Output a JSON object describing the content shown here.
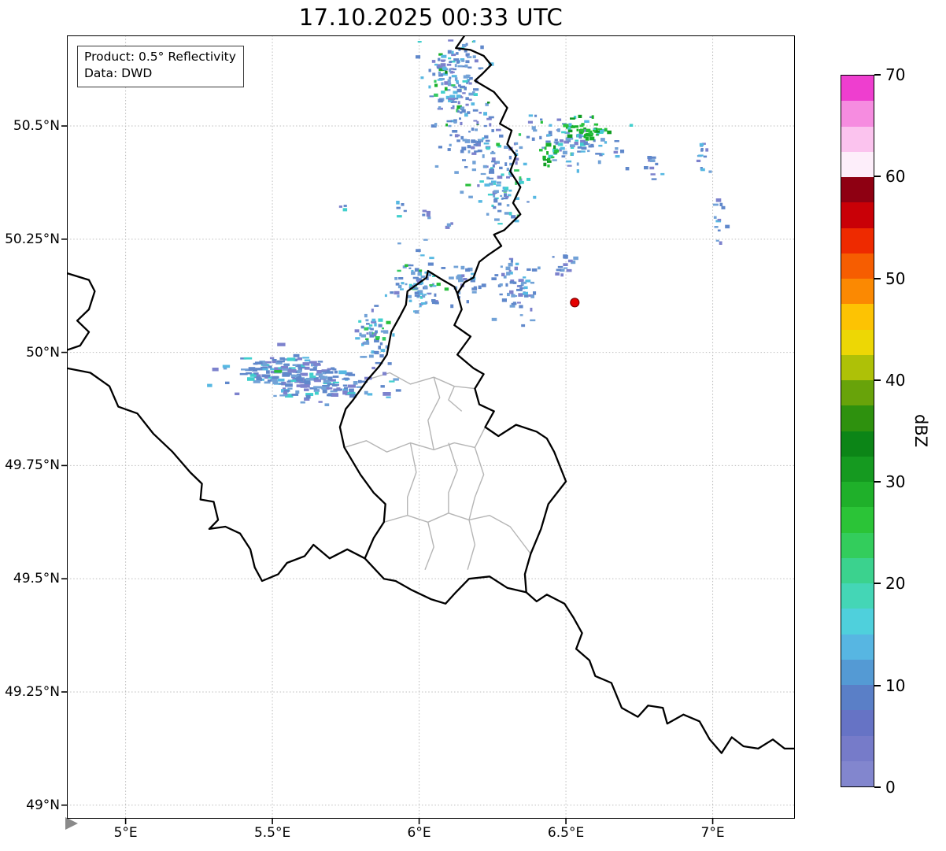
{
  "title": "17.10.2025 00:33 UTC",
  "annotation": {
    "line1": "Product: 0.5° Reflectivity",
    "line2": "Data: DWD"
  },
  "axes": {
    "x_ticks": [
      {
        "value": 5.0,
        "label": "5°E"
      },
      {
        "value": 5.5,
        "label": "5.5°E"
      },
      {
        "value": 6.0,
        "label": "6°E"
      },
      {
        "value": 6.5,
        "label": "6.5°E"
      },
      {
        "value": 7.0,
        "label": "7°E"
      }
    ],
    "y_ticks": [
      {
        "value": 50.5,
        "label": "50.5°N"
      },
      {
        "value": 50.25,
        "label": "50.25°N"
      },
      {
        "value": 50.0,
        "label": "50°N"
      },
      {
        "value": 49.75,
        "label": "49.75°N"
      },
      {
        "value": 49.5,
        "label": "49.5°N"
      },
      {
        "value": 49.25,
        "label": "49.25°N"
      },
      {
        "value": 49.0,
        "label": "49°N"
      }
    ]
  },
  "map": {
    "extent": {
      "lon_min": 4.8,
      "lon_max": 7.28,
      "lat_min": 48.97,
      "lat_max": 50.7
    },
    "grid_color": "#bdbdbd",
    "country_border_color": "#000000",
    "district_border_color": "#b5b5b5",
    "country_borders": [
      [
        [
          6.155,
          50.7
        ],
        [
          6.125,
          50.672
        ],
        [
          6.175,
          50.668
        ],
        [
          6.22,
          50.655
        ],
        [
          6.245,
          50.635
        ],
        [
          6.215,
          50.615
        ],
        [
          6.19,
          50.6
        ],
        [
          6.255,
          50.575
        ],
        [
          6.3,
          50.54
        ],
        [
          6.275,
          50.505
        ],
        [
          6.315,
          50.49
        ],
        [
          6.3,
          50.46
        ],
        [
          6.33,
          50.435
        ],
        [
          6.31,
          50.4
        ],
        [
          6.345,
          50.365
        ],
        [
          6.32,
          50.33
        ],
        [
          6.345,
          50.305
        ],
        [
          6.29,
          50.27
        ],
        [
          6.255,
          50.26
        ],
        [
          6.28,
          50.235
        ],
        [
          6.235,
          50.215
        ],
        [
          6.205,
          50.2
        ],
        [
          6.185,
          50.165
        ],
        [
          6.155,
          50.155
        ],
        [
          6.13,
          50.13
        ]
      ],
      [
        [
          6.13,
          50.13
        ],
        [
          6.145,
          50.095
        ],
        [
          6.12,
          50.06
        ],
        [
          6.175,
          50.035
        ],
        [
          6.13,
          49.995
        ],
        [
          6.185,
          49.965
        ],
        [
          6.22,
          49.952
        ],
        [
          6.19,
          49.92
        ],
        [
          6.205,
          49.885
        ],
        [
          6.255,
          49.87
        ],
        [
          6.225,
          49.835
        ],
        [
          6.27,
          49.815
        ],
        [
          6.33,
          49.84
        ],
        [
          6.4,
          49.825
        ],
        [
          6.435,
          49.81
        ],
        [
          6.46,
          49.78
        ],
        [
          6.5,
          49.715
        ],
        [
          6.44,
          49.665
        ],
        [
          6.415,
          49.61
        ],
        [
          6.38,
          49.555
        ],
        [
          6.36,
          49.51
        ],
        [
          6.365,
          49.47
        ],
        [
          6.3,
          49.48
        ],
        [
          6.24,
          49.505
        ],
        [
          6.17,
          49.5
        ],
        [
          6.125,
          49.47
        ],
        [
          6.09,
          49.445
        ],
        [
          6.04,
          49.455
        ],
        [
          5.975,
          49.475
        ],
        [
          5.92,
          49.495
        ],
        [
          5.88,
          49.5
        ],
        [
          5.815,
          49.545
        ],
        [
          5.845,
          49.59
        ],
        [
          5.88,
          49.625
        ],
        [
          5.885,
          49.665
        ],
        [
          5.845,
          49.69
        ],
        [
          5.8,
          49.73
        ],
        [
          5.745,
          49.79
        ],
        [
          5.73,
          49.835
        ],
        [
          5.75,
          49.875
        ],
        [
          5.775,
          49.895
        ],
        [
          5.825,
          49.94
        ],
        [
          5.865,
          49.97
        ],
        [
          5.89,
          49.995
        ],
        [
          5.905,
          50.045
        ],
        [
          5.935,
          50.08
        ],
        [
          5.955,
          50.105
        ],
        [
          5.96,
          50.135
        ],
        [
          6.025,
          50.165
        ],
        [
          6.03,
          50.18
        ],
        [
          6.08,
          50.16
        ],
        [
          6.12,
          50.145
        ],
        [
          6.13,
          50.13
        ]
      ],
      [
        [
          4.8,
          50.175
        ],
        [
          4.875,
          50.16
        ],
        [
          4.895,
          50.135
        ],
        [
          4.875,
          50.095
        ],
        [
          4.835,
          50.07
        ],
        [
          4.875,
          50.045
        ],
        [
          4.845,
          50.015
        ],
        [
          4.8,
          50.005
        ]
      ],
      [
        [
          4.8,
          49.965
        ],
        [
          4.88,
          49.955
        ],
        [
          4.945,
          49.925
        ],
        [
          4.975,
          49.88
        ],
        [
          5.04,
          49.865
        ],
        [
          5.095,
          49.82
        ],
        [
          5.16,
          49.78
        ],
        [
          5.22,
          49.735
        ],
        [
          5.26,
          49.71
        ],
        [
          5.255,
          49.675
        ],
        [
          5.3,
          49.67
        ],
        [
          5.315,
          49.63
        ],
        [
          5.285,
          49.61
        ],
        [
          5.34,
          49.615
        ],
        [
          5.39,
          49.6
        ],
        [
          5.425,
          49.565
        ],
        [
          5.44,
          49.525
        ],
        [
          5.465,
          49.495
        ],
        [
          5.52,
          49.51
        ],
        [
          5.55,
          49.535
        ],
        [
          5.61,
          49.55
        ],
        [
          5.64,
          49.575
        ],
        [
          5.695,
          49.545
        ],
        [
          5.755,
          49.565
        ],
        [
          5.815,
          49.545
        ]
      ],
      [
        [
          6.365,
          49.47
        ],
        [
          6.4,
          49.45
        ],
        [
          6.435,
          49.465
        ],
        [
          6.495,
          49.445
        ],
        [
          6.525,
          49.415
        ],
        [
          6.555,
          49.38
        ],
        [
          6.535,
          49.345
        ],
        [
          6.58,
          49.32
        ],
        [
          6.6,
          49.285
        ],
        [
          6.655,
          49.27
        ],
        [
          6.69,
          49.215
        ],
        [
          6.745,
          49.195
        ],
        [
          6.78,
          49.22
        ],
        [
          6.83,
          49.215
        ],
        [
          6.845,
          49.18
        ],
        [
          6.9,
          49.2
        ],
        [
          6.955,
          49.185
        ],
        [
          6.99,
          49.145
        ],
        [
          7.03,
          49.115
        ],
        [
          7.065,
          49.15
        ],
        [
          7.105,
          49.13
        ],
        [
          7.155,
          49.125
        ],
        [
          7.205,
          49.145
        ],
        [
          7.245,
          49.125
        ],
        [
          7.28,
          49.125
        ]
      ]
    ],
    "district_borders": [
      [
        [
          5.825,
          49.94
        ],
        [
          5.9,
          49.955
        ],
        [
          5.97,
          49.93
        ],
        [
          6.05,
          49.945
        ],
        [
          6.12,
          49.925
        ],
        [
          6.19,
          49.92
        ]
      ],
      [
        [
          5.745,
          49.79
        ],
        [
          5.82,
          49.805
        ],
        [
          5.89,
          49.78
        ],
        [
          5.97,
          49.8
        ],
        [
          6.05,
          49.785
        ],
        [
          6.12,
          49.8
        ],
        [
          6.19,
          49.79
        ],
        [
          6.225,
          49.835
        ]
      ],
      [
        [
          5.88,
          49.625
        ],
        [
          5.96,
          49.64
        ],
        [
          6.03,
          49.625
        ],
        [
          6.1,
          49.645
        ],
        [
          6.17,
          49.63
        ],
        [
          6.24,
          49.64
        ],
        [
          6.31,
          49.615
        ],
        [
          6.38,
          49.555
        ]
      ],
      [
        [
          5.97,
          49.8
        ],
        [
          5.99,
          49.735
        ],
        [
          5.96,
          49.68
        ],
        [
          5.96,
          49.64
        ]
      ],
      [
        [
          6.1,
          49.8
        ],
        [
          6.13,
          49.74
        ],
        [
          6.1,
          49.69
        ],
        [
          6.1,
          49.645
        ]
      ],
      [
        [
          6.19,
          49.79
        ],
        [
          6.22,
          49.73
        ],
        [
          6.19,
          49.68
        ],
        [
          6.17,
          49.63
        ]
      ],
      [
        [
          6.05,
          49.945
        ],
        [
          6.07,
          49.9
        ],
        [
          6.03,
          49.85
        ],
        [
          6.05,
          49.785
        ]
      ],
      [
        [
          6.03,
          49.625
        ],
        [
          6.05,
          49.57
        ],
        [
          6.02,
          49.52
        ]
      ],
      [
        [
          6.17,
          49.63
        ],
        [
          6.19,
          49.575
        ],
        [
          6.165,
          49.52
        ]
      ],
      [
        [
          6.12,
          49.925
        ],
        [
          6.1,
          49.895
        ],
        [
          6.145,
          49.87
        ]
      ]
    ],
    "station_marker": {
      "lon": 6.53,
      "lat": 50.11,
      "fill": "#e50000",
      "edge": "#7f0000"
    },
    "echo_palettes": {
      "blue": [
        [
          "#7d82cd",
          2.5
        ],
        [
          "#6088cb",
          5
        ],
        [
          "#72a2d7",
          3
        ],
        [
          "#57b8e2",
          1.2
        ],
        [
          "#41cfcd",
          0.5
        ]
      ],
      "cyanmix": [
        [
          "#7d82cd",
          1.5
        ],
        [
          "#6088cb",
          4
        ],
        [
          "#72a2d7",
          3
        ],
        [
          "#57b8e2",
          2.2
        ],
        [
          "#41cfcd",
          1.4
        ],
        [
          "#35ca62",
          0.5
        ],
        [
          "#27bf3a",
          0.4
        ]
      ],
      "green": [
        [
          "#27c23c",
          4
        ],
        [
          "#17b02a",
          3
        ],
        [
          "#109d22",
          1.5
        ],
        [
          "#41cfcd",
          1
        ],
        [
          "#57b8e2",
          0.7
        ]
      ],
      "streak": [
        [
          "#7d82cd",
          3
        ],
        [
          "#6088cb",
          5
        ],
        [
          "#72a2d7",
          2.5
        ],
        [
          "#57b8e2",
          1.2
        ],
        [
          "#41cfcd",
          0.8
        ],
        [
          "#27bf3a",
          0.15
        ]
      ],
      "mix": [
        [
          "#7d82cd",
          2
        ],
        [
          "#6088cb",
          4.5
        ],
        [
          "#72a2d7",
          3
        ],
        [
          "#57b8e2",
          2
        ],
        [
          "#41cfcd",
          1.2
        ],
        [
          "#35ca62",
          0.6
        ],
        [
          "#17b02a",
          0.5
        ],
        [
          "#0c8a1a",
          0.2
        ]
      ]
    },
    "echo_blobs": [
      {
        "lon": 6.13,
        "lat": 50.6,
        "sx": 0.05,
        "sy": 0.062,
        "rot": 20,
        "n": 170,
        "palette": "mix",
        "seed": 11,
        "cw": 4,
        "ch": 3
      },
      {
        "lon": 6.22,
        "lat": 50.455,
        "sx": 0.065,
        "sy": 0.03,
        "rot": -25,
        "n": 70,
        "palette": "blue",
        "seed": 12,
        "cw": 4,
        "ch": 3
      },
      {
        "lon": 6.52,
        "lat": 50.465,
        "sx": 0.075,
        "sy": 0.028,
        "rot": -5,
        "n": 95,
        "palette": "cyanmix",
        "seed": 13,
        "cw": 4,
        "ch": 3
      },
      {
        "lon": 6.565,
        "lat": 50.49,
        "sx": 0.038,
        "sy": 0.011,
        "rot": -5,
        "n": 48,
        "palette": "green",
        "seed": 14,
        "cw": 4,
        "ch": 3
      },
      {
        "lon": 6.44,
        "lat": 50.435,
        "sx": 0.018,
        "sy": 0.012,
        "rot": 0,
        "n": 16,
        "palette": "green",
        "seed": 15,
        "cw": 4,
        "ch": 3
      },
      {
        "lon": 6.79,
        "lat": 50.415,
        "sx": 0.015,
        "sy": 0.02,
        "rot": 0,
        "n": 10,
        "palette": "blue",
        "seed": 16,
        "cw": 4,
        "ch": 3
      },
      {
        "lon": 6.965,
        "lat": 50.44,
        "sx": 0.016,
        "sy": 0.025,
        "rot": 0,
        "n": 14,
        "palette": "cyanmix",
        "seed": 17,
        "cw": 4,
        "ch": 3
      },
      {
        "lon": 7.025,
        "lat": 50.3,
        "sx": 0.012,
        "sy": 0.028,
        "rot": 0,
        "n": 12,
        "palette": "blue",
        "seed": 18,
        "cw": 4,
        "ch": 3
      },
      {
        "lon": 6.27,
        "lat": 50.365,
        "sx": 0.048,
        "sy": 0.042,
        "rot": -30,
        "n": 75,
        "palette": "cyanmix",
        "seed": 19,
        "cw": 4,
        "ch": 3
      },
      {
        "lon": 5.935,
        "lat": 50.315,
        "sx": 0.01,
        "sy": 0.008,
        "rot": 0,
        "n": 5,
        "palette": "blue",
        "seed": 20,
        "cw": 4,
        "ch": 3
      },
      {
        "lon": 6.03,
        "lat": 50.3,
        "sx": 0.012,
        "sy": 0.008,
        "rot": 0,
        "n": 5,
        "palette": "blue",
        "seed": 21,
        "cw": 4,
        "ch": 3
      },
      {
        "lon": 6.1,
        "lat": 50.275,
        "sx": 0.008,
        "sy": 0.006,
        "rot": 0,
        "n": 4,
        "palette": "blue",
        "seed": 22,
        "cw": 4,
        "ch": 3
      },
      {
        "lon": 5.74,
        "lat": 50.315,
        "sx": 0.008,
        "sy": 0.006,
        "rot": 0,
        "n": 3,
        "palette": "blue",
        "seed": 29,
        "cw": 4,
        "ch": 3
      },
      {
        "lon": 6.0,
        "lat": 50.145,
        "sx": 0.045,
        "sy": 0.035,
        "rot": 10,
        "n": 85,
        "palette": "cyanmix",
        "seed": 23,
        "cw": 4,
        "ch": 3
      },
      {
        "lon": 6.155,
        "lat": 50.15,
        "sx": 0.025,
        "sy": 0.018,
        "rot": 0,
        "n": 25,
        "palette": "blue",
        "seed": 24,
        "cw": 4,
        "ch": 3
      },
      {
        "lon": 6.33,
        "lat": 50.135,
        "sx": 0.035,
        "sy": 0.038,
        "rot": 0,
        "n": 60,
        "palette": "blue",
        "seed": 25,
        "cw": 4,
        "ch": 3
      },
      {
        "lon": 6.5,
        "lat": 50.2,
        "sx": 0.022,
        "sy": 0.012,
        "rot": 0,
        "n": 14,
        "palette": "blue",
        "seed": 26,
        "cw": 4,
        "ch": 3
      },
      {
        "lon": 5.6,
        "lat": 49.945,
        "sx": 0.115,
        "sy": 0.022,
        "rot": -6,
        "n": 230,
        "palette": "streak",
        "seed": 27,
        "cw": 6,
        "ch": 3
      },
      {
        "lon": 5.845,
        "lat": 50.035,
        "sx": 0.028,
        "sy": 0.03,
        "rot": 30,
        "n": 55,
        "palette": "cyanmix",
        "seed": 28,
        "cw": 4,
        "ch": 3
      }
    ]
  },
  "colorbar": {
    "label": "dBZ",
    "min": 0,
    "max": 70,
    "tick_values": [
      0,
      10,
      20,
      30,
      40,
      50,
      60,
      70
    ],
    "segment_colors": [
      "#8286ce",
      "#767bc9",
      "#6673c5",
      "#5a7fc7",
      "#549ad4",
      "#57b6e2",
      "#4fd0dc",
      "#44d6b6",
      "#3bd28e",
      "#33cd5c",
      "#2bc437",
      "#1fb02a",
      "#159a20",
      "#0c8517",
      "#2e910e",
      "#68a30a",
      "#aec107",
      "#edd705",
      "#fdc303",
      "#fb8902",
      "#f65d01",
      "#ee2a00",
      "#c90007",
      "#8e0012",
      "#fdeefa",
      "#fbc3ee",
      "#f68ce0",
      "#ee3ecf"
    ]
  }
}
